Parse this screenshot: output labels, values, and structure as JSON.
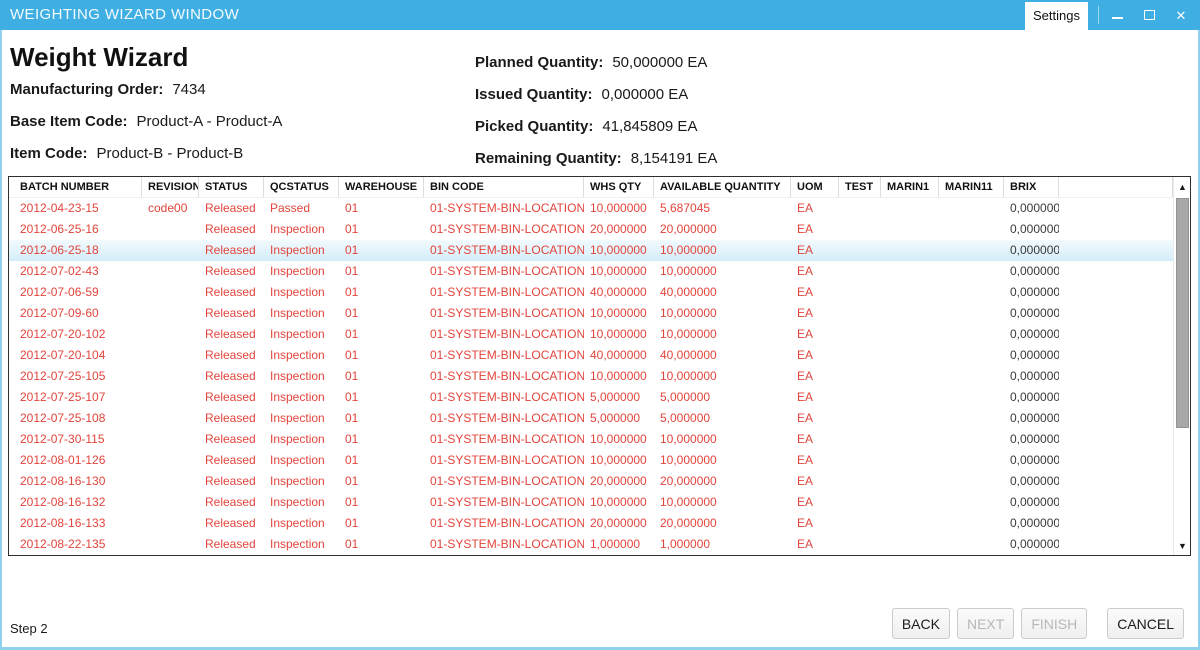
{
  "window": {
    "title": "WEIGHTING WIZARD WINDOW",
    "settings_tab_label": "Settings"
  },
  "header": {
    "title": "Weight Wizard",
    "left_fields": [
      {
        "label": "Manufacturing Order:",
        "value": "7434"
      },
      {
        "label": "Base Item Code:",
        "value": "Product-A - Product-A"
      },
      {
        "label": "Item Code:",
        "value": "Product-B - Product-B"
      }
    ],
    "right_fields": [
      {
        "label": "Planned Quantity:",
        "value": "50,000000 EA"
      },
      {
        "label": "Issued Quantity:",
        "value": "0,000000 EA"
      },
      {
        "label": "Picked Quantity:",
        "value": "41,845809 EA"
      },
      {
        "label": "Remaining Quantity:",
        "value": "8,154191 EA"
      }
    ]
  },
  "table": {
    "columns": [
      "BATCH NUMBER",
      "REVISION",
      "STATUS",
      "QCSTATUS",
      "WAREHOUSE",
      "BIN CODE",
      "WHS QTY",
      "AVAILABLE QUANTITY",
      "UOM",
      "TEST",
      "MARIN1",
      "MARIN11",
      "BRIX"
    ],
    "selected_row_index": 2,
    "rows": [
      [
        "2012-04-23-15",
        "code00",
        "Released",
        "Passed",
        "01",
        "01-SYSTEM-BIN-LOCATION",
        "10,000000",
        "5,687045",
        "EA",
        "",
        "",
        "",
        "0,000000"
      ],
      [
        "2012-06-25-16",
        "",
        "Released",
        "Inspection",
        "01",
        "01-SYSTEM-BIN-LOCATION",
        "20,000000",
        "20,000000",
        "EA",
        "",
        "",
        "",
        "0,000000"
      ],
      [
        "2012-06-25-18",
        "",
        "Released",
        "Inspection",
        "01",
        "01-SYSTEM-BIN-LOCATION",
        "10,000000",
        "10,000000",
        "EA",
        "",
        "",
        "",
        "0,000000"
      ],
      [
        "2012-07-02-43",
        "",
        "Released",
        "Inspection",
        "01",
        "01-SYSTEM-BIN-LOCATION",
        "10,000000",
        "10,000000",
        "EA",
        "",
        "",
        "",
        "0,000000"
      ],
      [
        "2012-07-06-59",
        "",
        "Released",
        "Inspection",
        "01",
        "01-SYSTEM-BIN-LOCATION",
        "40,000000",
        "40,000000",
        "EA",
        "",
        "",
        "",
        "0,000000"
      ],
      [
        "2012-07-09-60",
        "",
        "Released",
        "Inspection",
        "01",
        "01-SYSTEM-BIN-LOCATION",
        "10,000000",
        "10,000000",
        "EA",
        "",
        "",
        "",
        "0,000000"
      ],
      [
        "2012-07-20-102",
        "",
        "Released",
        "Inspection",
        "01",
        "01-SYSTEM-BIN-LOCATION",
        "10,000000",
        "10,000000",
        "EA",
        "",
        "",
        "",
        "0,000000"
      ],
      [
        "2012-07-20-104",
        "",
        "Released",
        "Inspection",
        "01",
        "01-SYSTEM-BIN-LOCATION",
        "40,000000",
        "40,000000",
        "EA",
        "",
        "",
        "",
        "0,000000"
      ],
      [
        "2012-07-25-105",
        "",
        "Released",
        "Inspection",
        "01",
        "01-SYSTEM-BIN-LOCATION",
        "10,000000",
        "10,000000",
        "EA",
        "",
        "",
        "",
        "0,000000"
      ],
      [
        "2012-07-25-107",
        "",
        "Released",
        "Inspection",
        "01",
        "01-SYSTEM-BIN-LOCATION",
        "5,000000",
        "5,000000",
        "EA",
        "",
        "",
        "",
        "0,000000"
      ],
      [
        "2012-07-25-108",
        "",
        "Released",
        "Inspection",
        "01",
        "01-SYSTEM-BIN-LOCATION",
        "5,000000",
        "5,000000",
        "EA",
        "",
        "",
        "",
        "0,000000"
      ],
      [
        "2012-07-30-115",
        "",
        "Released",
        "Inspection",
        "01",
        "01-SYSTEM-BIN-LOCATION",
        "10,000000",
        "10,000000",
        "EA",
        "",
        "",
        "",
        "0,000000"
      ],
      [
        "2012-08-01-126",
        "",
        "Released",
        "Inspection",
        "01",
        "01-SYSTEM-BIN-LOCATION",
        "10,000000",
        "10,000000",
        "EA",
        "",
        "",
        "",
        "0,000000"
      ],
      [
        "2012-08-16-130",
        "",
        "Released",
        "Inspection",
        "01",
        "01-SYSTEM-BIN-LOCATION",
        "20,000000",
        "20,000000",
        "EA",
        "",
        "",
        "",
        "0,000000"
      ],
      [
        "2012-08-16-132",
        "",
        "Released",
        "Inspection",
        "01",
        "01-SYSTEM-BIN-LOCATION",
        "10,000000",
        "10,000000",
        "EA",
        "",
        "",
        "",
        "0,000000"
      ],
      [
        "2012-08-16-133",
        "",
        "Released",
        "Inspection",
        "01",
        "01-SYSTEM-BIN-LOCATION",
        "20,000000",
        "20,000000",
        "EA",
        "",
        "",
        "",
        "0,000000"
      ],
      [
        "2012-08-22-135",
        "",
        "Released",
        "Inspection",
        "01",
        "01-SYSTEM-BIN-LOCATION",
        "1,000000",
        "1,000000",
        "EA",
        "",
        "",
        "",
        "0,000000"
      ]
    ]
  },
  "footer": {
    "step_label": "Step 2",
    "buttons": [
      {
        "label": "BACK",
        "enabled": true
      },
      {
        "label": "NEXT",
        "enabled": false
      },
      {
        "label": "FINISH",
        "enabled": false
      },
      {
        "label": "CANCEL",
        "enabled": true
      }
    ]
  },
  "colors": {
    "titlebar": "#3faee2",
    "data_red": "#e2453c",
    "window_edge": "#8fd0ec"
  }
}
